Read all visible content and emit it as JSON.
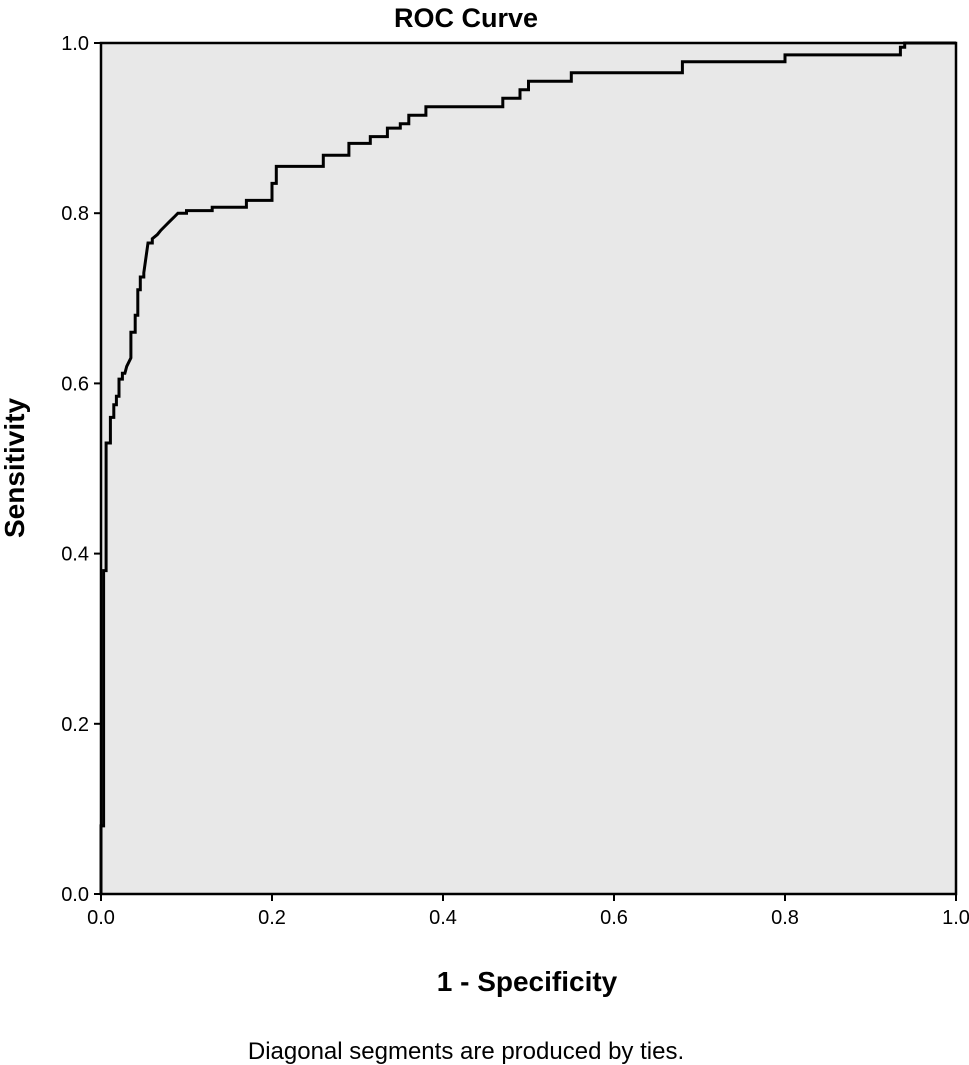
{
  "chart_data": {
    "type": "line",
    "title": "ROC Curve",
    "xlabel": "1 - Specificity",
    "ylabel": "Sensitivity",
    "xlim": [
      0,
      1
    ],
    "ylim": [
      0,
      1
    ],
    "x_ticks": [
      "0.0",
      "0.2",
      "0.4",
      "0.6",
      "0.8",
      "1.0"
    ],
    "y_ticks": [
      "0.0",
      "0.2",
      "0.4",
      "0.6",
      "0.8",
      "1.0"
    ],
    "grid": false,
    "plot_background": "#e8e8e8",
    "line_color": "#000000",
    "footnote": "Diagonal segments are produced by ties.",
    "series": [
      {
        "x": [
          0.0,
          0.0,
          0.003,
          0.003,
          0.006,
          0.006,
          0.011,
          0.011,
          0.015,
          0.015,
          0.018,
          0.018,
          0.021,
          0.021,
          0.025,
          0.025,
          0.028,
          0.03,
          0.035,
          0.035,
          0.04,
          0.04,
          0.043,
          0.043,
          0.046,
          0.046,
          0.05,
          0.05,
          0.055,
          0.06,
          0.06,
          0.066,
          0.07,
          0.075,
          0.08,
          0.085,
          0.09,
          0.1,
          0.1,
          0.13,
          0.13,
          0.17,
          0.17,
          0.2,
          0.2,
          0.205,
          0.205,
          0.26,
          0.26,
          0.29,
          0.29,
          0.315,
          0.315,
          0.335,
          0.335,
          0.35,
          0.35,
          0.36,
          0.36,
          0.38,
          0.38,
          0.47,
          0.47,
          0.49,
          0.49,
          0.5,
          0.5,
          0.55,
          0.55,
          0.68,
          0.68,
          0.8,
          0.8,
          0.935,
          0.935,
          0.94,
          0.94,
          1.0
        ],
        "y": [
          0.0,
          0.08,
          0.08,
          0.38,
          0.38,
          0.53,
          0.53,
          0.56,
          0.56,
          0.575,
          0.575,
          0.585,
          0.585,
          0.605,
          0.605,
          0.612,
          0.612,
          0.62,
          0.63,
          0.66,
          0.66,
          0.68,
          0.68,
          0.71,
          0.71,
          0.725,
          0.725,
          0.73,
          0.765,
          0.765,
          0.77,
          0.775,
          0.78,
          0.785,
          0.79,
          0.795,
          0.8,
          0.8,
          0.803,
          0.803,
          0.807,
          0.807,
          0.815,
          0.815,
          0.835,
          0.835,
          0.855,
          0.855,
          0.868,
          0.868,
          0.882,
          0.882,
          0.89,
          0.89,
          0.9,
          0.9,
          0.905,
          0.905,
          0.915,
          0.915,
          0.925,
          0.925,
          0.935,
          0.935,
          0.945,
          0.945,
          0.955,
          0.955,
          0.965,
          0.965,
          0.978,
          0.978,
          0.986,
          0.986,
          0.995,
          0.995,
          1.0,
          1.0
        ]
      }
    ]
  }
}
